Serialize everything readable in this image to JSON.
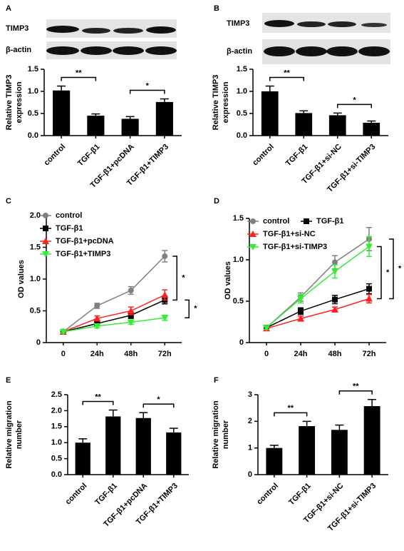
{
  "chart_data": [
    {
      "type": "bar",
      "label": "A",
      "blot_labels": [
        "TIMP3",
        "β-actin"
      ],
      "ylabel": [
        "Relative TIMP3",
        "expression"
      ],
      "categories": [
        "control",
        "TGF-β1",
        "TGF-β1+pcDNA",
        "TGF-β1+TIMP3"
      ],
      "values": [
        1.02,
        0.45,
        0.38,
        0.76
      ],
      "errors": [
        0.1,
        0.04,
        0.05,
        0.07
      ],
      "color": "#000000",
      "ylim": [
        0,
        1.5
      ],
      "yticks": [
        {
          "value": 0,
          "label": "0.0"
        },
        0.5,
        {
          "value": 1,
          "label": "1.0"
        },
        1.5
      ],
      "annotations": [
        {
          "text": "**",
          "from": 0,
          "to": 1
        },
        {
          "text": "*",
          "from": 2,
          "to": 3
        }
      ]
    },
    {
      "type": "bar",
      "label": "B",
      "blot_labels": [
        "TIMP3",
        "β-actin"
      ],
      "ylabel": [
        "Relative TIMP3",
        "expression"
      ],
      "categories": [
        "control",
        "TGF-β1",
        "TGF-β1+si-NC",
        "TGF-β1+si-TIMP3"
      ],
      "values": [
        1.0,
        0.51,
        0.46,
        0.29
      ],
      "errors": [
        0.12,
        0.05,
        0.05,
        0.04
      ],
      "color": "#000000",
      "ylim": [
        0,
        1.5
      ],
      "yticks": [
        {
          "value": 0,
          "label": "0.0"
        },
        0.5,
        {
          "value": 1,
          "label": "1.0"
        },
        1.5
      ],
      "annotations": [
        {
          "text": "**",
          "from": 0,
          "to": 1
        },
        {
          "text": "*",
          "from": 2,
          "to": 3
        }
      ]
    },
    {
      "type": "line",
      "label": "C",
      "ylabel": [
        "OD values"
      ],
      "categories": [
        "0",
        "24h",
        "48h",
        "72h"
      ],
      "series": [
        {
          "name": "control",
          "color": "#808080",
          "marker": "circle",
          "values": [
            0.17,
            0.58,
            0.82,
            1.36
          ],
          "errors": [
            0.03,
            0.04,
            0.06,
            0.09
          ]
        },
        {
          "name": "TGF-β1",
          "color": "#000000",
          "marker": "square",
          "values": [
            0.17,
            0.3,
            0.43,
            0.67
          ],
          "errors": [
            0.02,
            0.03,
            0.05,
            0.06
          ]
        },
        {
          "name": "TGF-β1+pcDNA",
          "color": "#ff2020",
          "marker": "triangle-up",
          "values": [
            0.17,
            0.38,
            0.5,
            0.75
          ],
          "errors": [
            0.02,
            0.04,
            0.06,
            0.08
          ]
        },
        {
          "name": "TGF-β1+TIMP3",
          "color": "#33ee33",
          "marker": "triangle-down",
          "values": [
            0.17,
            0.26,
            0.32,
            0.39
          ],
          "errors": [
            0.02,
            0.03,
            0.03,
            0.04
          ]
        }
      ],
      "ylim": [
        0,
        2
      ],
      "yticks": [
        0,
        0.5,
        {
          "value": 1,
          "label": "1.0"
        },
        1.5,
        {
          "value": 2,
          "label": "2.0"
        }
      ],
      "annotations": [
        {
          "text": "*",
          "series": [
            0,
            1
          ]
        },
        {
          "text": "*",
          "series": [
            1,
            3
          ]
        }
      ]
    },
    {
      "type": "line",
      "label": "D",
      "ylabel": [
        "OD values"
      ],
      "categories": [
        "0",
        "24h",
        "48h",
        "72h"
      ],
      "series": [
        {
          "name": "control",
          "color": "#808080",
          "marker": "circle",
          "values": [
            0.18,
            0.55,
            0.97,
            1.25
          ],
          "errors": [
            0.02,
            0.05,
            0.08,
            0.14
          ]
        },
        {
          "name": "TGF-β1",
          "color": "#000000",
          "marker": "square",
          "values": [
            0.18,
            0.38,
            0.52,
            0.65
          ],
          "errors": [
            0.02,
            0.04,
            0.05,
            0.06
          ]
        },
        {
          "name": "TGF-β1+si-NC",
          "color": "#ff2020",
          "marker": "triangle-up",
          "values": [
            0.17,
            0.29,
            0.4,
            0.53
          ],
          "errors": [
            0.02,
            0.03,
            0.03,
            0.05
          ]
        },
        {
          "name": "TGF-β1+si-TIMP3",
          "color": "#33ee33",
          "marker": "triangle-down",
          "values": [
            0.18,
            0.53,
            0.86,
            1.16
          ],
          "errors": [
            0.02,
            0.05,
            0.08,
            0.12
          ]
        }
      ],
      "ylim": [
        0,
        1.5
      ],
      "yticks": [
        0,
        0.5,
        {
          "value": 1,
          "label": "1.0"
        },
        1.5
      ],
      "annotations": [
        {
          "text": "*",
          "series": [
            3,
            2
          ]
        },
        {
          "text": "*",
          "series": [
            0,
            2
          ]
        }
      ]
    },
    {
      "type": "bar",
      "label": "E",
      "ylabel": [
        "Relative migration",
        "number"
      ],
      "categories": [
        "control",
        "TGF-β1",
        "TGF-β1+pcDNA",
        "TGF-β1+TIMP3"
      ],
      "values": [
        1.0,
        1.82,
        1.77,
        1.32
      ],
      "errors": [
        0.12,
        0.2,
        0.17,
        0.13
      ],
      "color": "#000000",
      "ylim": [
        0,
        2.5
      ],
      "yticks": [
        {
          "value": 0,
          "label": "0.0"
        },
        0.5,
        {
          "value": 1,
          "label": "1.0"
        },
        1.5,
        {
          "value": 2,
          "label": "2.0"
        },
        2.5
      ],
      "annotations": [
        {
          "text": "**",
          "from": 0,
          "to": 1
        },
        {
          "text": "*",
          "from": 2,
          "to": 3
        }
      ]
    },
    {
      "type": "bar",
      "label": "F",
      "ylabel": [
        "Relative migration",
        "number"
      ],
      "categories": [
        "control",
        "TGF-β1",
        "TGF-β1+si-NC",
        "TGF-β1+si-TIMP3"
      ],
      "values": [
        1.0,
        1.82,
        1.68,
        2.57
      ],
      "errors": [
        0.1,
        0.18,
        0.18,
        0.25
      ],
      "color": "#000000",
      "ylim": [
        0,
        3
      ],
      "yticks": [
        0,
        1,
        2,
        3
      ],
      "annotations": [
        {
          "text": "**",
          "from": 0,
          "to": 1
        },
        {
          "text": "**",
          "from": 2,
          "to": 3
        }
      ]
    }
  ]
}
